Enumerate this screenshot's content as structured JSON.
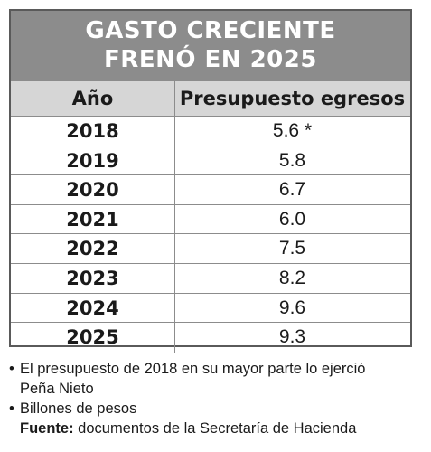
{
  "chart_data": {
    "type": "table",
    "title": "GASTO CRECIENTE FRENÓ EN 2025",
    "title_lines": [
      "GASTO CRECIENTE",
      "FRENÓ EN 2025"
    ],
    "columns": [
      "Año",
      "Presupuesto egresos"
    ],
    "rows": [
      {
        "year": "2018",
        "value": "5.6 *"
      },
      {
        "year": "2019",
        "value": "5.8"
      },
      {
        "year": "2020",
        "value": "6.7"
      },
      {
        "year": "2021",
        "value": "6.0"
      },
      {
        "year": "2022",
        "value": "7.5"
      },
      {
        "year": "2023",
        "value": "8.2"
      },
      {
        "year": "2024",
        "value": "9.6"
      },
      {
        "year": "2025",
        "value": "9.3"
      }
    ],
    "x": [
      2018,
      2019,
      2020,
      2021,
      2022,
      2023,
      2024,
      2025
    ],
    "values": [
      5.6,
      5.8,
      6.7,
      6.0,
      7.5,
      8.2,
      9.6,
      9.3
    ]
  },
  "notes": {
    "bullet": "•",
    "note1_line1": "El presupuesto de 2018 en su mayor parte lo ejerció",
    "note1_line2": "Peña Nieto",
    "note2": "Billones de pesos",
    "source_label": "Fuente:",
    "source_text": " documentos de la Secretaría de Hacienda"
  },
  "colors": {
    "title_bg": "#8c8c8c",
    "header_bg": "#d6d6d6",
    "border": "#5a5a5a"
  }
}
